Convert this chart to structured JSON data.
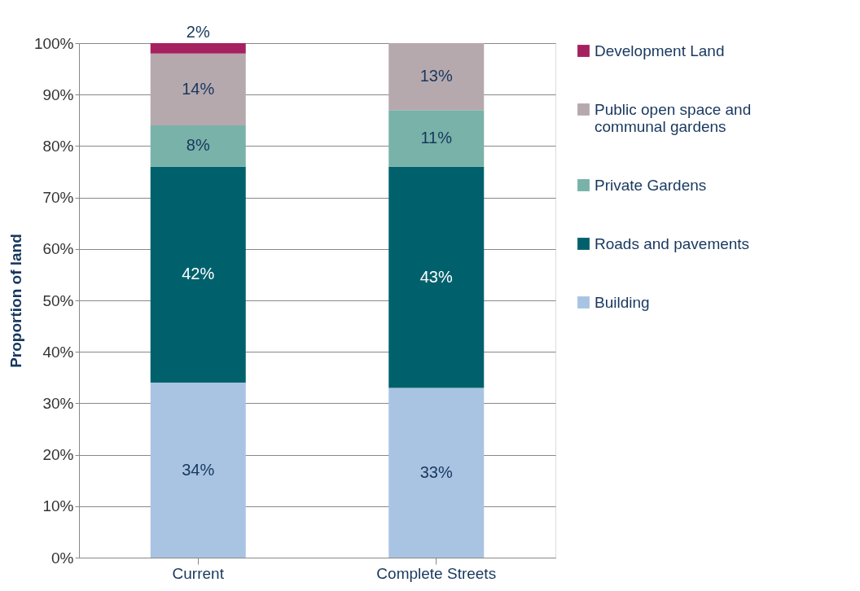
{
  "chart_data": {
    "type": "bar",
    "stacked": true,
    "ylabel": "Proportion of land",
    "categories": [
      "Current",
      "Complete Streets"
    ],
    "series": [
      {
        "name": "Building",
        "color": "#a9c4e3",
        "values": [
          34,
          33
        ],
        "value_labels": [
          "34%",
          "33%"
        ]
      },
      {
        "name": "Roads and pavements",
        "color": "#00616c",
        "values": [
          42,
          43
        ],
        "value_labels": [
          "42%",
          "43%"
        ]
      },
      {
        "name": "Private Gardens",
        "color": "#78b2a8",
        "values": [
          8,
          11
        ],
        "value_labels": [
          "8%",
          "11%"
        ]
      },
      {
        "name": "Public open space and communal gardens",
        "color": "#b6a9ae",
        "values": [
          14,
          13
        ],
        "value_labels": [
          "14%",
          "13%"
        ]
      },
      {
        "name": "Development Land",
        "color": "#a5215f",
        "values": [
          2,
          null
        ],
        "value_labels": [
          "2%",
          null
        ]
      }
    ],
    "ylim": [
      0,
      100
    ],
    "yticks": [
      {
        "value": 0,
        "label": "0%"
      },
      {
        "value": 10,
        "label": "10%"
      },
      {
        "value": 20,
        "label": "20%"
      },
      {
        "value": 30,
        "label": "30%"
      },
      {
        "value": 40,
        "label": "40%"
      },
      {
        "value": 50,
        "label": "50%"
      },
      {
        "value": 60,
        "label": "60%"
      },
      {
        "value": 70,
        "label": "70%"
      },
      {
        "value": 80,
        "label": "80%"
      },
      {
        "value": 90,
        "label": "90%"
      },
      {
        "value": 100,
        "label": "100%"
      }
    ],
    "grid": "y",
    "legend": "right"
  }
}
